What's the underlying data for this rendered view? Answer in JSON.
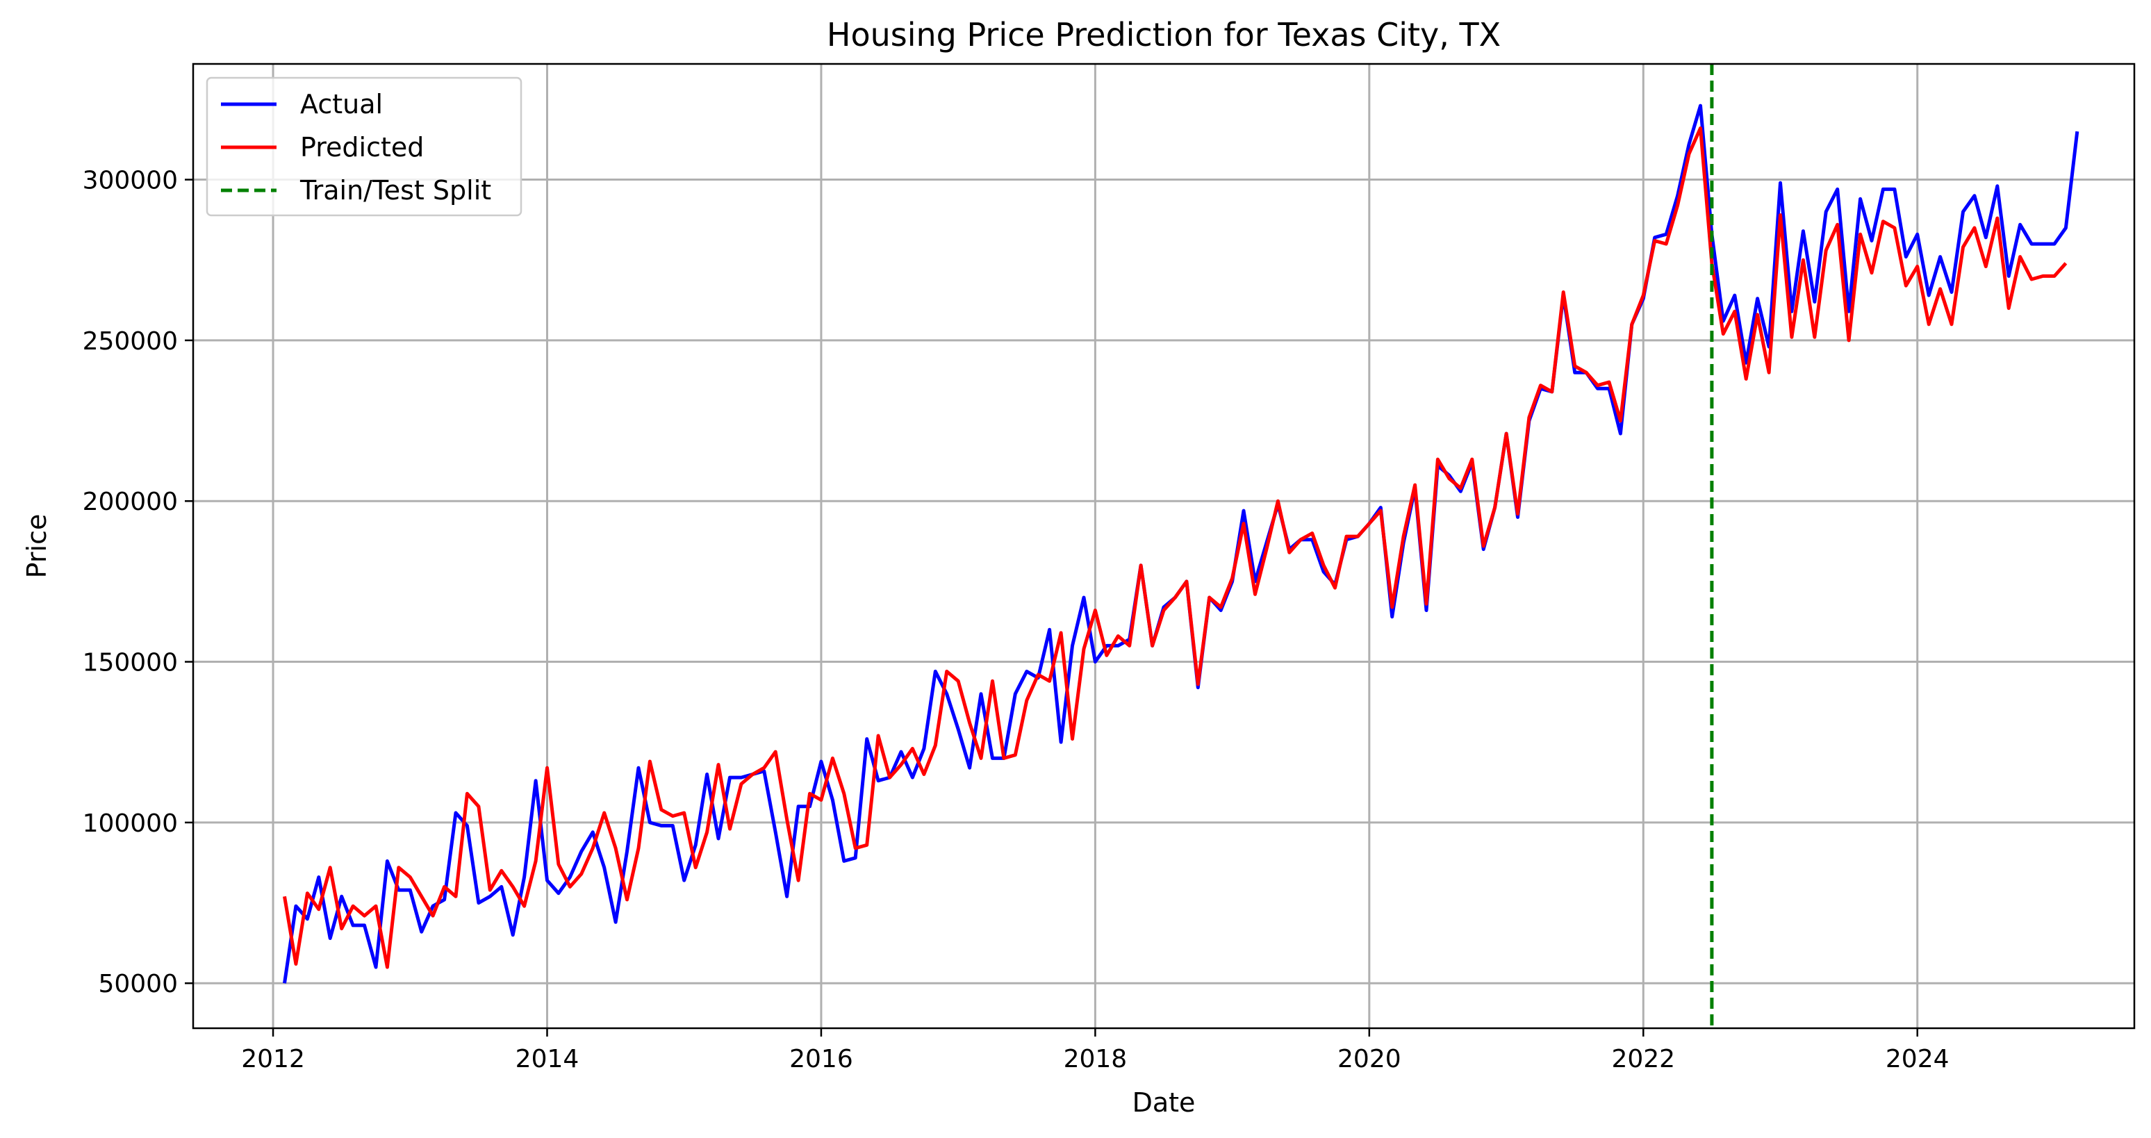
{
  "chart_data": {
    "type": "line",
    "title": "Housing Price Prediction for Texas City, TX",
    "xlabel": "Date",
    "ylabel": "Price",
    "xlim": [
      "2011-06",
      "2025-08"
    ],
    "ylim": [
      36000,
      336000
    ],
    "x_ticks": [
      "2012",
      "2014",
      "2016",
      "2018",
      "2020",
      "2022",
      "2024"
    ],
    "y_ticks": [
      50000,
      100000,
      150000,
      200000,
      250000,
      300000
    ],
    "grid": true,
    "legend_position": "top-left",
    "x_start": "2012-02",
    "x_step": "1 month",
    "split": {
      "name": "Train/Test Split",
      "x": "2022-07",
      "color": "#008000",
      "style": "dashed"
    },
    "series": [
      {
        "name": "Actual",
        "color": "#0000ff",
        "values": [
          50000,
          74000,
          70000,
          83000,
          64000,
          77000,
          68000,
          68000,
          55000,
          88000,
          79000,
          79000,
          66000,
          74000,
          76000,
          103000,
          99000,
          75000,
          77000,
          80000,
          65000,
          83000,
          113000,
          82000,
          78000,
          83000,
          91000,
          97000,
          86000,
          69000,
          91000,
          117000,
          100000,
          99000,
          99000,
          82000,
          93000,
          115000,
          95000,
          114000,
          114000,
          115000,
          116000,
          97000,
          77000,
          105000,
          105000,
          119000,
          107000,
          88000,
          89000,
          126000,
          113000,
          114000,
          122000,
          114000,
          123000,
          147000,
          140000,
          129000,
          117000,
          140000,
          120000,
          120000,
          140000,
          147000,
          145000,
          160000,
          125000,
          155000,
          170000,
          150000,
          155000,
          155000,
          157000,
          180000,
          155000,
          167000,
          170000,
          175000,
          142000,
          170000,
          166000,
          175000,
          197000,
          175000,
          187000,
          199000,
          185000,
          188000,
          188000,
          178000,
          174000,
          188000,
          189000,
          193000,
          198000,
          164000,
          187000,
          204000,
          166000,
          211000,
          208000,
          203000,
          212000,
          185000,
          198000,
          221000,
          195000,
          225000,
          235000,
          234000,
          264000,
          240000,
          240000,
          235000,
          235000,
          221000,
          255000,
          263000,
          282000,
          283000,
          295000,
          311000,
          323000,
          283000,
          256000,
          264000,
          243000,
          263000,
          248000,
          299000,
          259000,
          284000,
          262000,
          290000,
          297000,
          259000,
          294000,
          281000,
          297000,
          297000,
          276000,
          283000,
          264000,
          276000,
          265000,
          290000,
          295000,
          282000,
          298000,
          270000,
          286000,
          280000,
          280000,
          280000,
          285000,
          315000
        ]
      },
      {
        "name": "Predicted",
        "color": "#ff0000",
        "values": [
          77000,
          56000,
          78000,
          73000,
          86000,
          67000,
          74000,
          71000,
          74000,
          55000,
          86000,
          83000,
          77000,
          71000,
          80000,
          77000,
          109000,
          105000,
          79000,
          85000,
          80000,
          74000,
          88000,
          117000,
          87000,
          80000,
          84000,
          92000,
          103000,
          92000,
          76000,
          92000,
          119000,
          104000,
          102000,
          103000,
          86000,
          97000,
          118000,
          98000,
          112000,
          115000,
          117000,
          122000,
          101000,
          82000,
          109000,
          107000,
          120000,
          109000,
          92000,
          93000,
          127000,
          114000,
          118000,
          123000,
          115000,
          124000,
          147000,
          144000,
          131000,
          120000,
          144000,
          120000,
          121000,
          138000,
          146000,
          144000,
          159000,
          126000,
          154000,
          166000,
          152000,
          158000,
          155000,
          180000,
          155000,
          166000,
          170000,
          175000,
          143000,
          170000,
          167000,
          176000,
          193000,
          171000,
          185000,
          200000,
          184000,
          188000,
          190000,
          180000,
          173000,
          189000,
          189000,
          193000,
          197000,
          167000,
          189000,
          205000,
          168000,
          213000,
          207000,
          204000,
          213000,
          186000,
          198000,
          221000,
          196000,
          226000,
          236000,
          234000,
          265000,
          242000,
          240000,
          236000,
          237000,
          225000,
          255000,
          264000,
          281000,
          280000,
          292000,
          308000,
          316000,
          274000,
          252000,
          259000,
          238000,
          258000,
          240000,
          289000,
          251000,
          275000,
          251000,
          278000,
          286000,
          250000,
          283000,
          271000,
          287000,
          285000,
          267000,
          273000,
          255000,
          266000,
          255000,
          279000,
          285000,
          273000,
          288000,
          260000,
          276000,
          269000,
          270000,
          270000,
          274000
        ]
      }
    ]
  }
}
